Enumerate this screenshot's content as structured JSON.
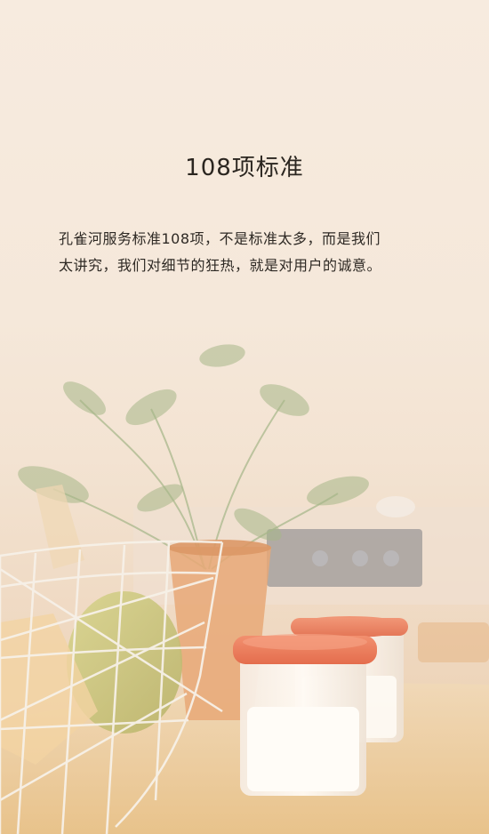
{
  "header": {
    "title": "108项标准"
  },
  "intro": {
    "line1": "孔雀河服务标准108项，不是标准太多，而是我们",
    "line2": "太讲究，我们对细节的狂热，就是对用户的诚意。"
  },
  "colors": {
    "background": "#f6e9dc",
    "text": "#2b2620",
    "lid": "#ef7c5c",
    "pot": "#e8a877",
    "plant": "#a7b789"
  }
}
